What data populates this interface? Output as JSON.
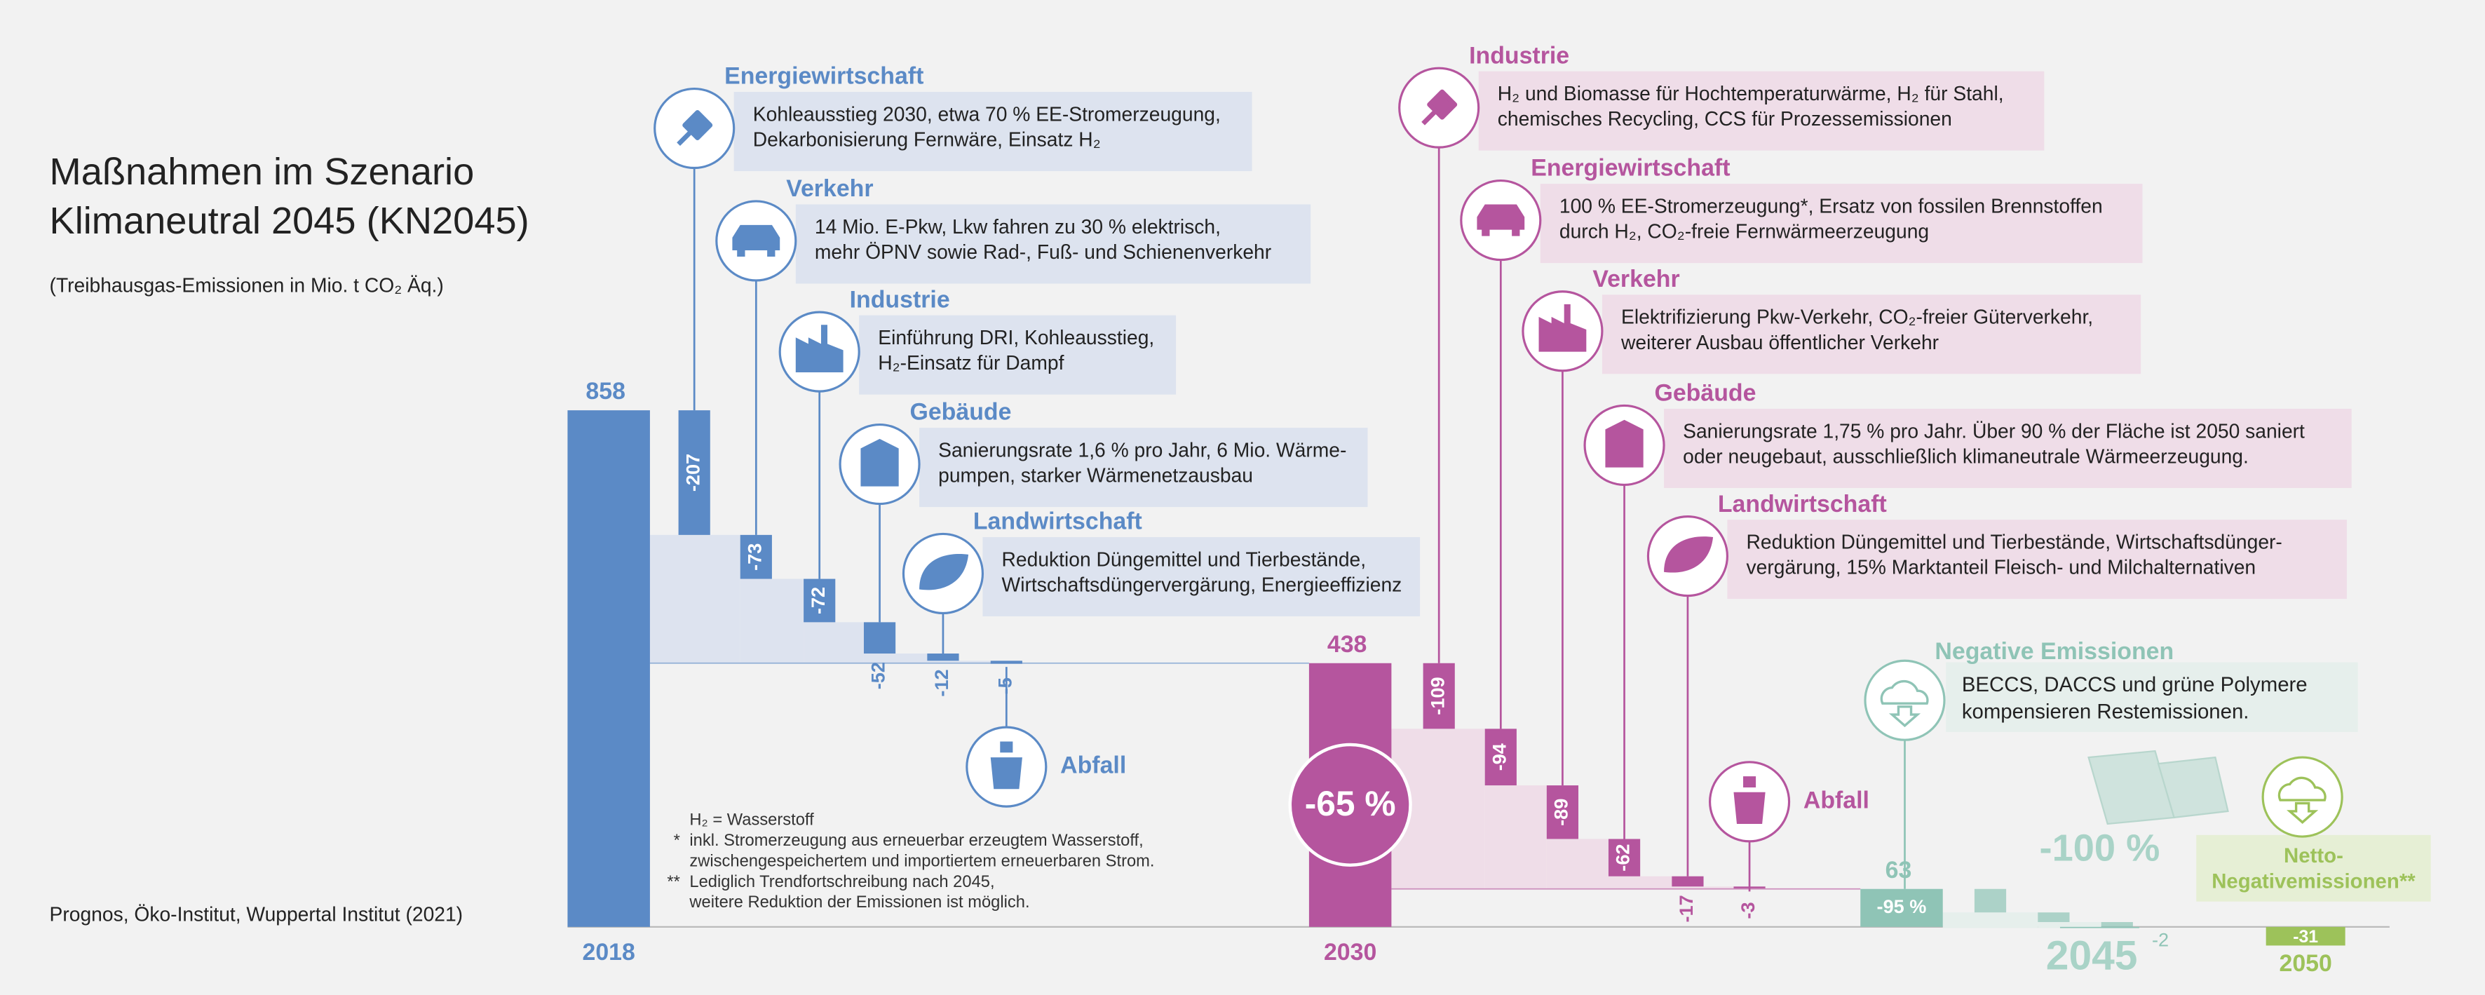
{
  "chart_data": {
    "type": "waterfall",
    "title": [
      "Maßnahmen im Szenario",
      "Klimaneutral 2045 (KN2045)"
    ],
    "subtitle": "(Treibhausgas-Emissionen in Mio. t CO₂ Äq.)",
    "source": "Prognos, Öko-Institut, Wuppertal Institut (2021)",
    "footnotes": [
      {
        "lines": [
          "H₂ = Wasserstoff"
        ]
      },
      {
        "marker": "*",
        "lines": [
          "inkl. Stromerzeugung aus erneuerbar erzeugtem Wasserstoff,",
          "zwischengespeichertem und importiertem erneuerbaren Strom."
        ]
      },
      {
        "marker": "**",
        "lines": [
          "Lediglich Trendfortschreibung nach 2045,",
          "weitere Reduktion der Emissionen ist möglich."
        ]
      }
    ],
    "totals": [
      {
        "name": "2018",
        "value": 858,
        "color": "#5b8ac6"
      },
      {
        "name": "2030",
        "value": 438,
        "color": "#b5559e",
        "change_label": "-65 %"
      },
      {
        "value": 63,
        "color": "#8fc4b6",
        "change_label": "-95 %"
      },
      {
        "name": "2045",
        "value": -2,
        "color": "#8fc4b6",
        "change_label": "-100 %"
      },
      {
        "name": "2050",
        "value": -31,
        "color": "#9dc25a",
        "label_lines": [
          "Netto-",
          "Negativemissionen**"
        ]
      }
    ],
    "phases": [
      {
        "color": "#5b8ac6",
        "box_color": "#dde3ef",
        "steps": [
          {
            "sector": "Energiewirtschaft",
            "value": -207,
            "text": [
              "Kohleausstieg 2030, etwa 70 % EE-Stromerzeugung,",
              "Dekarbonisierung Fernwäre, Einsatz H₂"
            ]
          },
          {
            "sector": "Verkehr",
            "value": -73,
            "text": [
              "14 Mio. E-Pkw, Lkw fahren zu 30 % elektrisch,",
              "mehr ÖPNV sowie Rad-, Fuß- und Schienenverkehr"
            ]
          },
          {
            "sector": "Industrie",
            "value": -72,
            "text": [
              "Einführung DRI, Kohleausstieg,",
              "H₂-Einsatz für Dampf"
            ]
          },
          {
            "sector": "Gebäude",
            "value": -52,
            "text": [
              "Sanierungsrate 1,6 % pro Jahr, 6 Mio. Wärme-",
              "pumpen, starker Wärmenetzausbau"
            ]
          },
          {
            "sector": "Landwirtschaft",
            "value": -12,
            "text": [
              "Reduktion Düngemittel und Tierbestände,",
              "Wirtschaftsdüngervergärung, Energieeffizienz"
            ]
          },
          {
            "sector": "Abfall",
            "value": -5
          }
        ]
      },
      {
        "color": "#b5559e",
        "box_color": "#efdde8",
        "steps": [
          {
            "sector": "Industrie",
            "value": -109,
            "text": [
              "H₂ und Biomasse für Hochtemperaturwärme, H₂ für Stahl,",
              "chemisches Recycling, CCS für Prozessemissionen"
            ]
          },
          {
            "sector": "Energiewirtschaft",
            "value": -94,
            "text": [
              "100 % EE-Stromerzeugung*, Ersatz von fossilen Brennstoffen",
              "durch H₂, CO₂-freie Fernwärmeerzeugung"
            ]
          },
          {
            "sector": "Verkehr",
            "value": -89,
            "text": [
              "Elektrifizierung Pkw-Verkehr, CO₂-freier Güterverkehr,",
              "weiterer Ausbau öffentlicher Verkehr"
            ]
          },
          {
            "sector": "Gebäude",
            "value": -62,
            "text": [
              "Sanierungsrate 1,75 % pro Jahr. Über 90 % der Fläche ist 2050 saniert",
              "oder neugebaut, ausschließlich klimaneutrale Wärmeerzeugung."
            ]
          },
          {
            "sector": "Landwirtschaft",
            "value": -17,
            "text": [
              "Reduktion Düngemittel und Tierbestände, Wirtschaftsdünger-",
              "vergärung, 15% Marktanteil Fleisch- und Milchalternativen"
            ]
          },
          {
            "sector": "Abfall",
            "value": -3
          }
        ]
      },
      {
        "color": "#8fc4b6",
        "box_color": "#e6efec",
        "sector": "Negative Emissionen",
        "text": [
          "BECCS, DACCS und grüne Polymere",
          "kompensieren Restemissionen."
        ],
        "values": [
          -39,
          -16,
          -10
        ]
      }
    ]
  }
}
